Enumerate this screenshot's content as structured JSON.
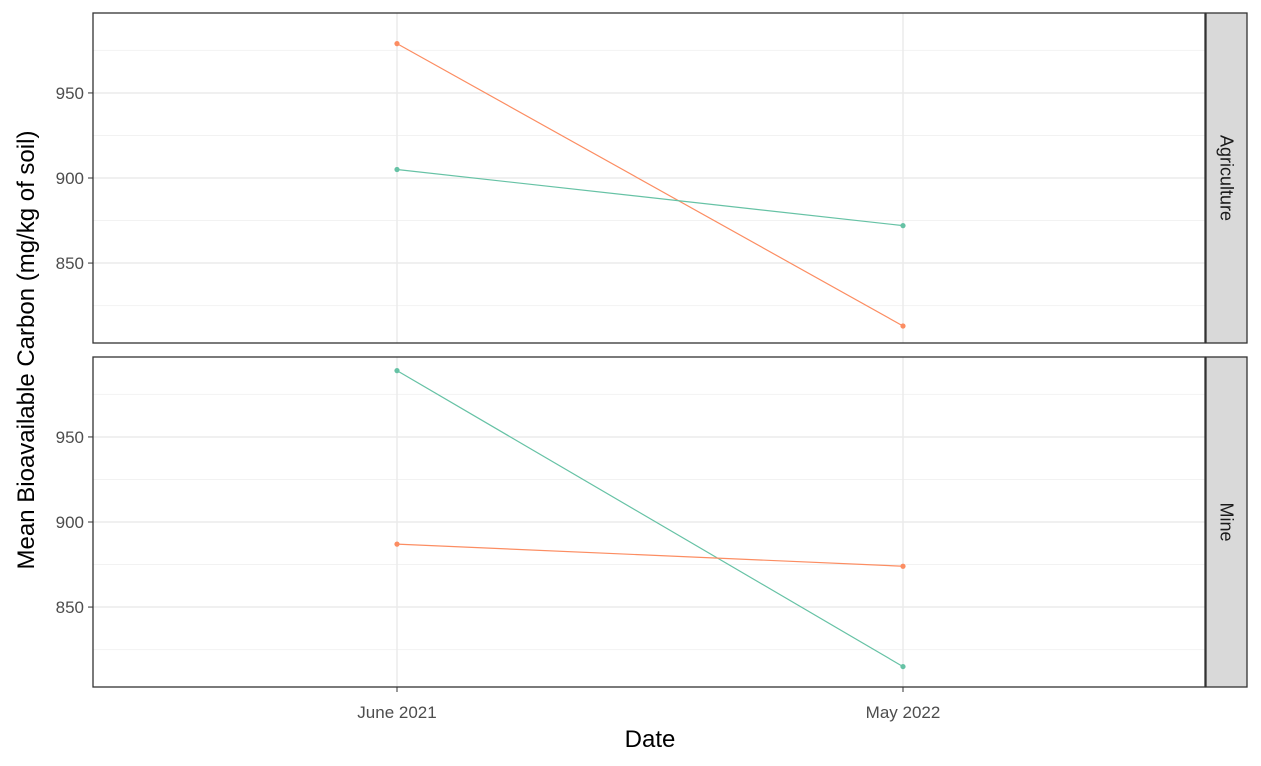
{
  "chart_data": {
    "type": "line",
    "xlabel": "Date",
    "ylabel": "Mean Bioavailable Carbon (mg/kg of soil)",
    "categories": [
      "June 2021",
      "May 2022"
    ],
    "ylim": [
      803,
      997
    ],
    "yticks": [
      850,
      900,
      950
    ],
    "grid": true,
    "legend": "none",
    "colors": {
      "series_a": "#fc8d62",
      "series_b": "#66c2a5"
    },
    "panels": [
      {
        "label": "Agriculture",
        "series": [
          {
            "color": "#fc8d62",
            "values": [
              979,
              813
            ]
          },
          {
            "color": "#66c2a5",
            "values": [
              905,
              872
            ]
          }
        ]
      },
      {
        "label": "Mine",
        "series": [
          {
            "color": "#66c2a5",
            "values": [
              989,
              815
            ]
          },
          {
            "color": "#fc8d62",
            "values": [
              887,
              874
            ]
          }
        ]
      }
    ]
  }
}
